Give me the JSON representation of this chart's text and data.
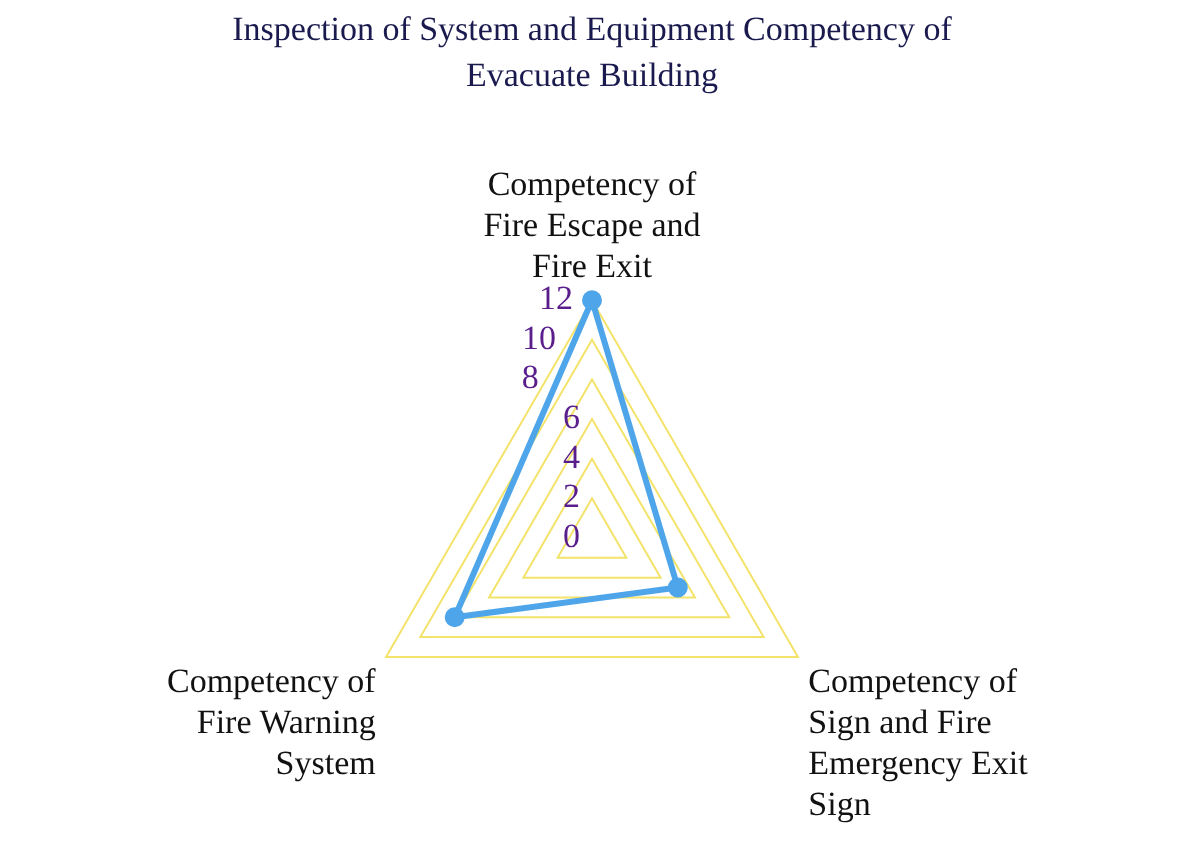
{
  "chart_data": {
    "type": "radar",
    "title": "Inspection of System and Equipment Competency of Evacuate Building",
    "categories": [
      "Competency of Fire Escape and Fire Exit",
      "Competency of Sign and Fire Emergency Exit Sign",
      "Competency of Fire Warning System"
    ],
    "series": [
      {
        "color": "#4ea5ea",
        "values": [
          12,
          5,
          8
        ]
      }
    ],
    "ylim": [
      0,
      12
    ],
    "yticks": [
      0,
      2,
      4,
      6,
      8,
      10,
      12
    ],
    "marker": "circle",
    "legend": false,
    "grid": true
  }
}
